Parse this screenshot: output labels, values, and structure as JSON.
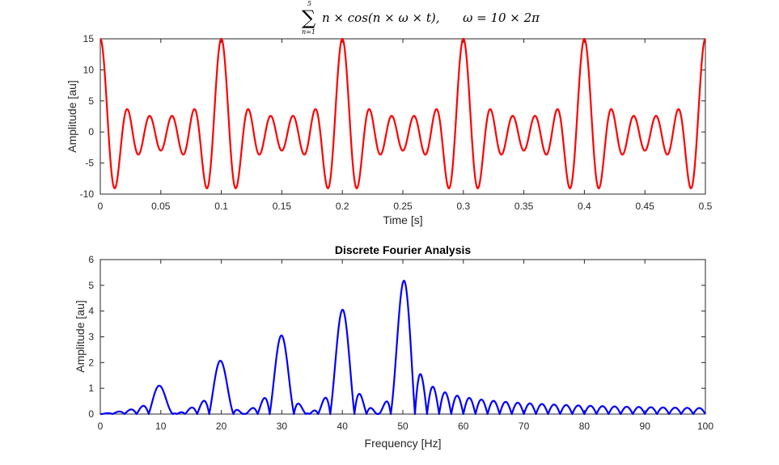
{
  "chart_data": [
    {
      "type": "line",
      "title": {
        "sum_symbol": "∑",
        "sum_upper": "5",
        "sum_lower": "n=1",
        "expression": "n × cos(n × ω × t),      ω = 10 × 2π"
      },
      "xlabel": "Time [s]",
      "ylabel": "Amplitude [au]",
      "xlim": [
        0,
        0.5
      ],
      "ylim": [
        -10,
        15
      ],
      "xticks": [
        "0",
        "0.05",
        "0.1",
        "0.15",
        "0.2",
        "0.25",
        "0.3",
        "0.35",
        "0.4",
        "0.45",
        "0.5"
      ],
      "yticks": [
        "-10",
        "-5",
        "0",
        "5",
        "10",
        "15"
      ],
      "series": [
        {
          "harmonic_amplitudes": [
            1,
            2,
            3,
            4,
            5
          ],
          "fundamental_hz": 10,
          "color": "#ff0000"
        }
      ],
      "peak_times": [
        0,
        0.1,
        0.2,
        0.3,
        0.4,
        0.5
      ],
      "peak_value": 15,
      "min_value": -9
    },
    {
      "type": "line",
      "title": "Discrete Fourier Analysis",
      "xlabel": "Frequency [Hz]",
      "ylabel": "Amplitude [au]",
      "xlim": [
        0,
        100
      ],
      "ylim": [
        0,
        6
      ],
      "xticks": [
        "0",
        "10",
        "20",
        "30",
        "40",
        "50",
        "60",
        "70",
        "80",
        "90",
        "100"
      ],
      "yticks": [
        "0",
        "1",
        "2",
        "3",
        "4",
        "5",
        "6"
      ],
      "series": [
        {
          "peaks_hz": [
            10,
            20,
            30,
            40,
            50
          ],
          "peak_values": [
            1.07,
            2.05,
            3.05,
            4.05,
            5.1
          ],
          "window_s": 0.5,
          "color": "#0000ff"
        }
      ]
    }
  ]
}
